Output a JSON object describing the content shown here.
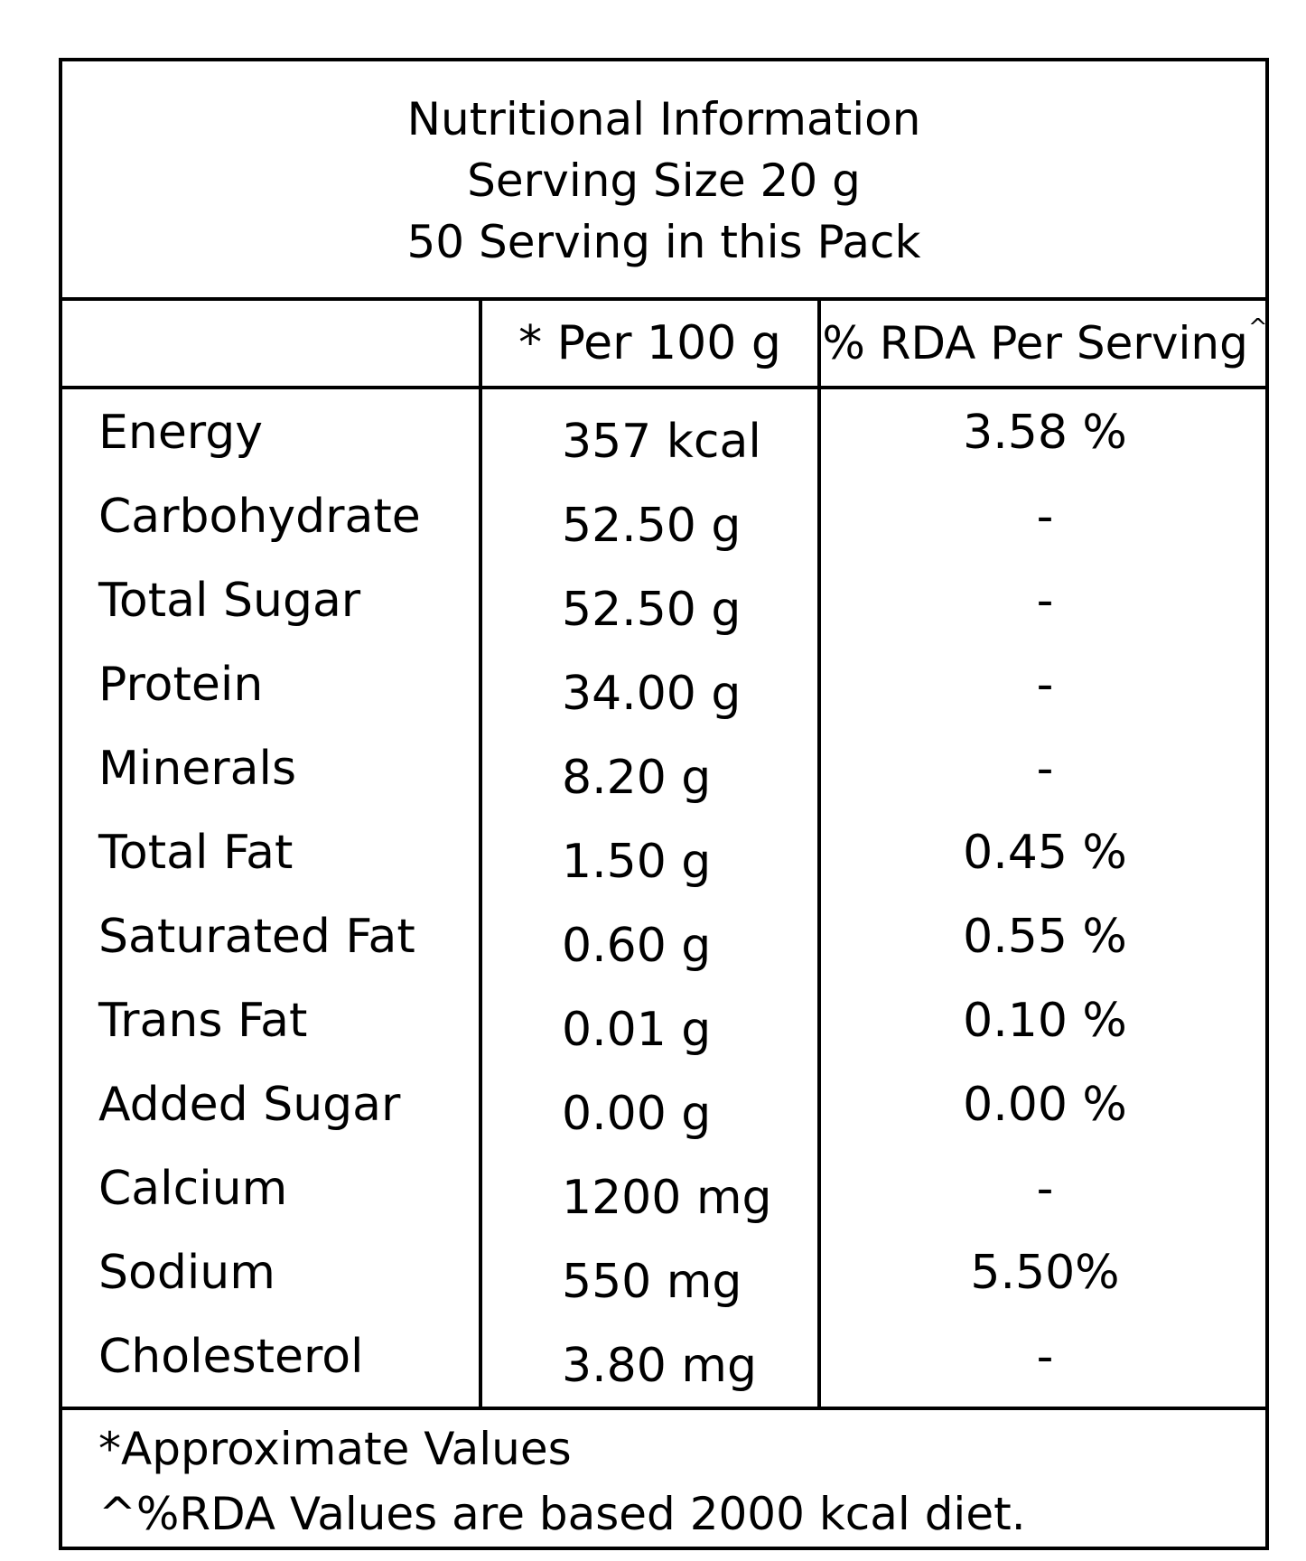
{
  "header": {
    "title": "Nutritional Information",
    "serving_size": "Serving Size 20 g",
    "servings": "50 Serving in this Pack"
  },
  "columns": {
    "per_100g": "* Per 100 g",
    "rda": "% RDA Per Serving",
    "rda_mark": "^"
  },
  "rows": [
    {
      "name": "Energy",
      "per": "357 kcal",
      "rda": "3.58 %"
    },
    {
      "name": "Carbohydrate",
      "per": "52.50 g",
      "rda": "-"
    },
    {
      "name": "Total Sugar",
      "per": "52.50 g",
      "rda": "-"
    },
    {
      "name": "Protein",
      "per": "34.00 g",
      "rda": "-"
    },
    {
      "name": "Minerals",
      "per": "8.20 g",
      "rda": "-"
    },
    {
      "name": "Total Fat",
      "per": "1.50 g",
      "rda": "0.45 %"
    },
    {
      "name": "Saturated Fat",
      "per": "0.60 g",
      "rda": "0.55 %"
    },
    {
      "name": "Trans Fat",
      "per": "0.01 g",
      "rda": "0.10 %"
    },
    {
      "name": "Added Sugar",
      "per": "0.00 g",
      "rda": "0.00 %"
    },
    {
      "name": "Calcium",
      "per": "1200 mg",
      "rda": "-"
    },
    {
      "name": "Sodium",
      "per": "550 mg",
      "rda": "5.50%"
    },
    {
      "name": "Cholesterol",
      "per": "3.80 mg",
      "rda": "-"
    }
  ],
  "footer": {
    "note1": "*Approximate Values",
    "note2": "^%RDA Values are based 2000 kcal diet."
  }
}
